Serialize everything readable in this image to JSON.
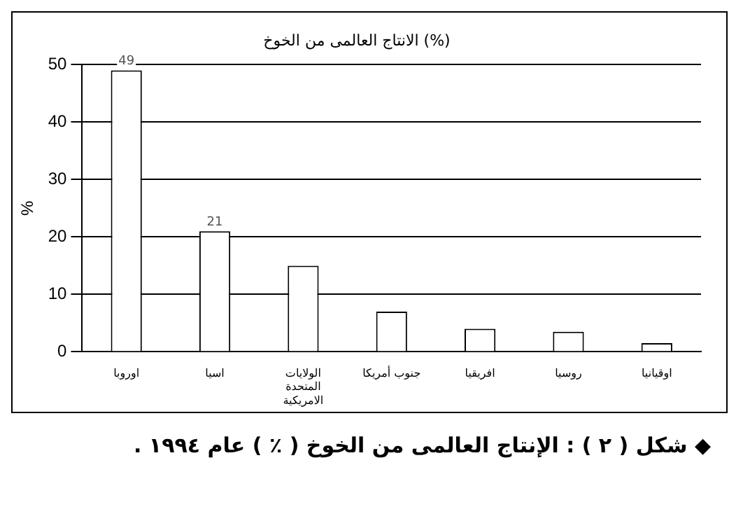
{
  "chart_data": {
    "type": "bar",
    "title": "الانتاج العالمى من الخوخ (%)",
    "categories": [
      "اوروبا",
      "اسيا",
      "الولايات المتحدة الامريكية",
      "جنوب أمريكا",
      "افريقيا",
      "روسيا",
      "اوقيانيا"
    ],
    "values": [
      49,
      21,
      15,
      7,
      4,
      3.5,
      1.5
    ],
    "value_labels": [
      "49",
      "21",
      null,
      null,
      null,
      null,
      null
    ],
    "color": "#ffffff",
    "ylabel": "%",
    "ylim": [
      0,
      50
    ],
    "yticks": [
      0,
      10,
      20,
      30,
      40,
      50
    ],
    "grid": "y",
    "annotations": [
      "◆ شكل ( ٢ ) : الإنتاج العالمى من الخوخ ( ٪ ) عام ١٩٩٤ ."
    ]
  }
}
